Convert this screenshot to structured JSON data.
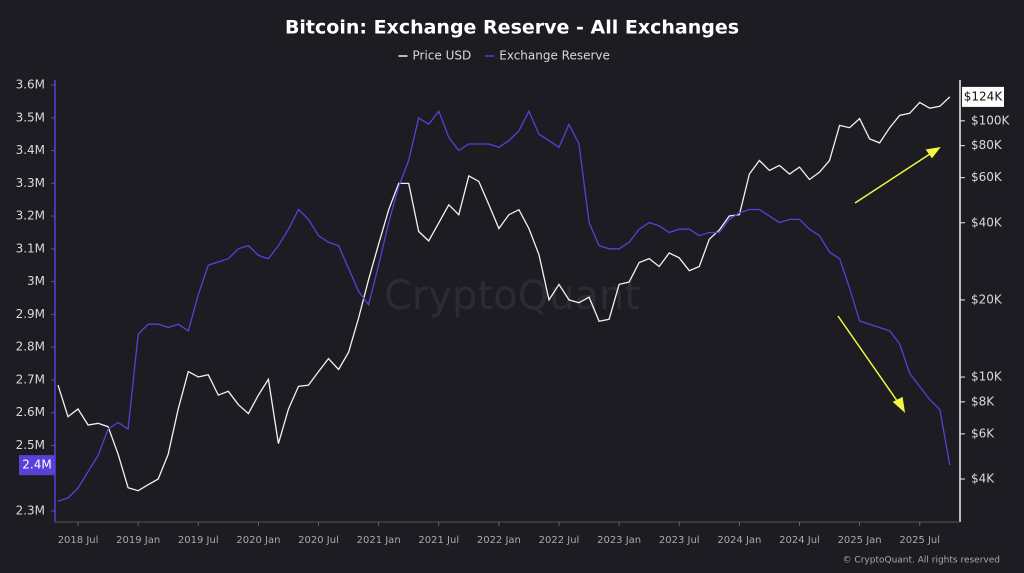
{
  "chart_data": {
    "type": "line",
    "title": "Bitcoin: Exchange Reserve - All Exchanges",
    "watermark": "CryptoQuant",
    "footer": "© CryptoQuant. All rights reserved",
    "x": [
      "2018-05",
      "2018-06",
      "2018-07",
      "2018-08",
      "2018-09",
      "2018-10",
      "2018-11",
      "2018-12",
      "2019-01",
      "2019-02",
      "2019-03",
      "2019-04",
      "2019-05",
      "2019-06",
      "2019-07",
      "2019-08",
      "2019-09",
      "2019-10",
      "2019-11",
      "2019-12",
      "2020-01",
      "2020-02",
      "2020-03",
      "2020-04",
      "2020-05",
      "2020-06",
      "2020-07",
      "2020-08",
      "2020-09",
      "2020-10",
      "2020-11",
      "2020-12",
      "2021-01",
      "2021-02",
      "2021-03",
      "2021-04",
      "2021-05",
      "2021-06",
      "2021-07",
      "2021-08",
      "2021-09",
      "2021-10",
      "2021-11",
      "2021-12",
      "2022-01",
      "2022-02",
      "2022-03",
      "2022-04",
      "2022-05",
      "2022-06",
      "2022-07",
      "2022-08",
      "2022-09",
      "2022-10",
      "2022-11",
      "2022-12",
      "2023-01",
      "2023-02",
      "2023-03",
      "2023-04",
      "2023-05",
      "2023-06",
      "2023-07",
      "2023-08",
      "2023-09",
      "2023-10",
      "2023-11",
      "2023-12",
      "2024-01",
      "2024-02",
      "2024-03",
      "2024-04",
      "2024-05",
      "2024-06",
      "2024-07",
      "2024-08",
      "2024-09",
      "2024-10",
      "2024-11",
      "2024-12",
      "2025-01",
      "2025-02",
      "2025-03",
      "2025-04",
      "2025-05",
      "2025-06",
      "2025-07",
      "2025-08",
      "2025-09",
      "2025-10"
    ],
    "xticks": [
      {
        "value": "2018-07",
        "label": "2018 Jul"
      },
      {
        "value": "2019-01",
        "label": "2019 Jan"
      },
      {
        "value": "2019-07",
        "label": "2019 Jul"
      },
      {
        "value": "2020-01",
        "label": "2020 Jan"
      },
      {
        "value": "2020-07",
        "label": "2020 Jul"
      },
      {
        "value": "2021-01",
        "label": "2021 Jan"
      },
      {
        "value": "2021-07",
        "label": "2021 Jul"
      },
      {
        "value": "2022-01",
        "label": "2022 Jan"
      },
      {
        "value": "2022-07",
        "label": "2022 Jul"
      },
      {
        "value": "2023-01",
        "label": "2023 Jan"
      },
      {
        "value": "2023-07",
        "label": "2023 Jul"
      },
      {
        "value": "2024-01",
        "label": "2024 Jan"
      },
      {
        "value": "2024-07",
        "label": "2024 Jul"
      },
      {
        "value": "2025-01",
        "label": "2025 Jan"
      },
      {
        "value": "2025-07",
        "label": "2025 Jul"
      }
    ],
    "ylim": [
      2300000,
      3600000
    ],
    "yticks": [
      {
        "value": 3600000,
        "label": "3.6M"
      },
      {
        "value": 3500000,
        "label": "3.5M"
      },
      {
        "value": 3400000,
        "label": "3.4M"
      },
      {
        "value": 3300000,
        "label": "3.3M"
      },
      {
        "value": 3200000,
        "label": "3.2M"
      },
      {
        "value": 3100000,
        "label": "3.1M"
      },
      {
        "value": 3000000,
        "label": "3M"
      },
      {
        "value": 2900000,
        "label": "2.9M"
      },
      {
        "value": 2800000,
        "label": "2.8M"
      },
      {
        "value": 2700000,
        "label": "2.7M"
      },
      {
        "value": 2600000,
        "label": "2.6M"
      },
      {
        "value": 2500000,
        "label": "2.5M"
      },
      {
        "value": 2300000,
        "label": "2.3M"
      }
    ],
    "y2lim": [
      3000,
      138000
    ],
    "y2_log": true,
    "y2ticks": [
      {
        "value": 100000,
        "label": "$100K"
      },
      {
        "value": 80000,
        "label": "$80K"
      },
      {
        "value": 60000,
        "label": "$60K"
      },
      {
        "value": 40000,
        "label": "$40K"
      },
      {
        "value": 20000,
        "label": "$20K"
      },
      {
        "value": 10000,
        "label": "$10K"
      },
      {
        "value": 8000,
        "label": "$8K"
      },
      {
        "value": 6000,
        "label": "$6K"
      },
      {
        "value": 4000,
        "label": "$4K"
      }
    ],
    "grid": false,
    "series": [
      {
        "name": "Price USD",
        "color": "#f2f2f2",
        "axis": "y2",
        "values": [
          9300,
          7000,
          7500,
          6500,
          6600,
          6400,
          5000,
          3700,
          3600,
          3800,
          4000,
          5000,
          7500,
          10500,
          10000,
          10200,
          8500,
          8800,
          7800,
          7200,
          8500,
          9800,
          5500,
          7500,
          9200,
          9300,
          10500,
          11800,
          10700,
          12500,
          17000,
          24000,
          33000,
          45000,
          57000,
          57000,
          37000,
          34000,
          40000,
          47000,
          43000,
          61000,
          58000,
          47000,
          38000,
          43000,
          45000,
          38000,
          30000,
          20000,
          23000,
          20000,
          19500,
          20500,
          16500,
          16800,
          23000,
          23500,
          28000,
          29000,
          27000,
          30500,
          29200,
          26000,
          27000,
          34500,
          37500,
          42500,
          43000,
          62000,
          70000,
          64000,
          67000,
          62000,
          66000,
          59000,
          63000,
          70000,
          96000,
          94000,
          102000,
          85000,
          82000,
          94000,
          105000,
          107000,
          118000,
          112000,
          114000,
          124000
        ],
        "value_labels": [
          null,
          null,
          null,
          null,
          null,
          null,
          null,
          null,
          null,
          null,
          null,
          null,
          null,
          null,
          null,
          null,
          null,
          null,
          null,
          null,
          null,
          null,
          null,
          null,
          null,
          null,
          null,
          null,
          null,
          null,
          null,
          null,
          null,
          null,
          null,
          null,
          null,
          null,
          null,
          null,
          null,
          null,
          null,
          null,
          null,
          null,
          null,
          null,
          null,
          null,
          null,
          null,
          null,
          null,
          null,
          null,
          null,
          null,
          null,
          null,
          null,
          null,
          null,
          null,
          null,
          null,
          null,
          null,
          null,
          null,
          null,
          null,
          null,
          null,
          null,
          null,
          null,
          null,
          null,
          null,
          null,
          null,
          null,
          null,
          null,
          null,
          null,
          null,
          null,
          "$124K"
        ]
      },
      {
        "name": "Exchange Reserve",
        "color": "#5a3fd8",
        "values": [
          2330000,
          2340000,
          2370000,
          2420000,
          2470000,
          2550000,
          2570000,
          2550000,
          2840000,
          2870000,
          2870000,
          2860000,
          2870000,
          2850000,
          2960000,
          3050000,
          3060000,
          3070000,
          3100000,
          3110000,
          3080000,
          3070000,
          3110000,
          3160000,
          3220000,
          3190000,
          3140000,
          3120000,
          3110000,
          3040000,
          2970000,
          2930000,
          3050000,
          3180000,
          3290000,
          3370000,
          3500000,
          3480000,
          3520000,
          3440000,
          3400000,
          3420000,
          3420000,
          3420000,
          3410000,
          3430000,
          3460000,
          3520000,
          3450000,
          3430000,
          3410000,
          3480000,
          3420000,
          3180000,
          3110000,
          3100000,
          3100000,
          3120000,
          3160000,
          3180000,
          3170000,
          3150000,
          3160000,
          3160000,
          3140000,
          3150000,
          3150000,
          3190000,
          3210000,
          3220000,
          3220000,
          3200000,
          3180000,
          3190000,
          3190000,
          3160000,
          3140000,
          3090000,
          3070000,
          2980000,
          2880000,
          2870000,
          2860000,
          2850000,
          2810000,
          2720000,
          2680000,
          2640000,
          2610000,
          2440000
        ],
        "value_labels": [
          null,
          null,
          null,
          null,
          null,
          null,
          null,
          null,
          null,
          null,
          null,
          null,
          null,
          null,
          null,
          null,
          null,
          null,
          null,
          null,
          null,
          null,
          null,
          null,
          null,
          null,
          null,
          null,
          null,
          null,
          null,
          null,
          null,
          null,
          null,
          null,
          null,
          null,
          null,
          null,
          null,
          null,
          null,
          null,
          null,
          null,
          null,
          null,
          null,
          null,
          null,
          null,
          null,
          null,
          null,
          null,
          null,
          null,
          null,
          null,
          null,
          null,
          null,
          null,
          null,
          null,
          null,
          null,
          null,
          null,
          null,
          null,
          null,
          null,
          null,
          null,
          null,
          null,
          null,
          null,
          null,
          null,
          null,
          null,
          null,
          null,
          null,
          null,
          null,
          "2.4M"
        ]
      }
    ]
  }
}
